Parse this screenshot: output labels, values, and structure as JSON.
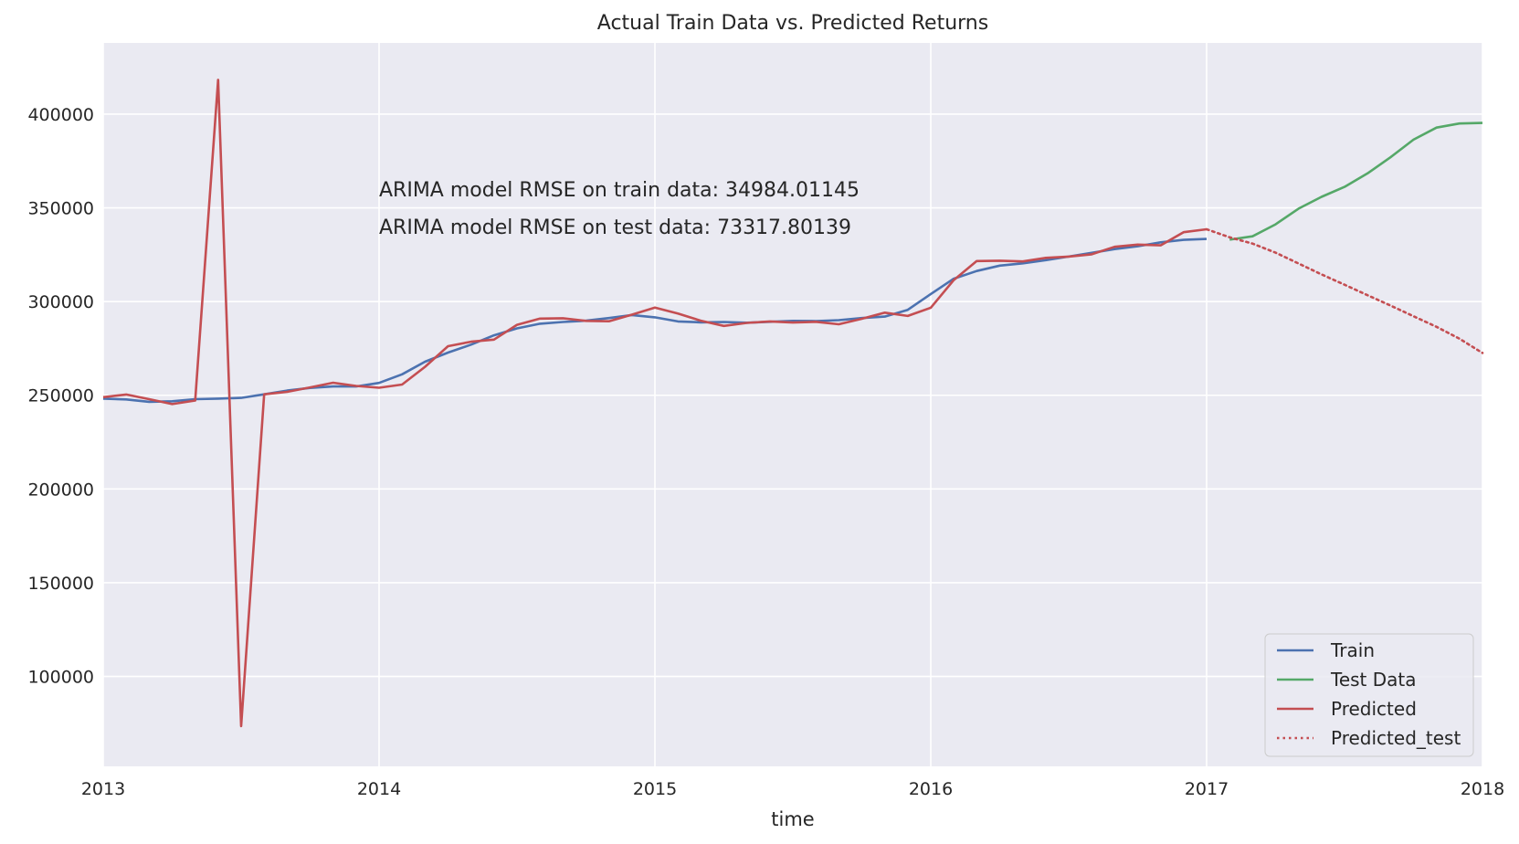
{
  "chart_data": {
    "type": "line",
    "title": "Actual Train Data vs. Predicted Returns",
    "xlabel": "time",
    "ylabel": "",
    "xlim": [
      2013.0,
      2018.0
    ],
    "ylim": [
      52000,
      438000
    ],
    "grid": true,
    "legend_position": "lower-right",
    "x_ticks": [
      {
        "value": 2013,
        "label": "2013"
      },
      {
        "value": 2014,
        "label": "2014"
      },
      {
        "value": 2015,
        "label": "2015"
      },
      {
        "value": 2016,
        "label": "2016"
      },
      {
        "value": 2017,
        "label": "2017"
      },
      {
        "value": 2018,
        "label": "2018"
      }
    ],
    "y_ticks": [
      {
        "value": 100000,
        "label": "100000"
      },
      {
        "value": 150000,
        "label": "150000"
      },
      {
        "value": 200000,
        "label": "200000"
      },
      {
        "value": 250000,
        "label": "250000"
      },
      {
        "value": 300000,
        "label": "300000"
      },
      {
        "value": 350000,
        "label": "350000"
      },
      {
        "value": 400000,
        "label": "400000"
      }
    ],
    "annotations": [
      {
        "text": "ARIMA model RMSE on train data: 34984.01145",
        "x": 2014.0,
        "y": 360000
      },
      {
        "text": "ARIMA model RMSE on test data: 73317.80139",
        "x": 2014.0,
        "y": 340000
      }
    ],
    "series": [
      {
        "name": "Train",
        "color": "#4c72b0",
        "dash": "solid",
        "x": [
          "2013-01",
          "2013-02",
          "2013-03",
          "2013-04",
          "2013-05",
          "2013-06",
          "2013-07",
          "2013-08",
          "2013-09",
          "2013-10",
          "2013-11",
          "2013-12",
          "2014-01",
          "2014-02",
          "2014-03",
          "2014-04",
          "2014-05",
          "2014-06",
          "2014-07",
          "2014-08",
          "2014-09",
          "2014-10",
          "2014-11",
          "2014-12",
          "2015-01",
          "2015-02",
          "2015-03",
          "2015-04",
          "2015-05",
          "2015-06",
          "2015-07",
          "2015-08",
          "2015-09",
          "2015-10",
          "2015-11",
          "2015-12",
          "2016-01",
          "2016-02",
          "2016-03",
          "2016-04",
          "2016-05",
          "2016-06",
          "2016-07",
          "2016-08",
          "2016-09",
          "2016-10",
          "2016-11",
          "2016-12",
          "2017-01"
        ],
        "values": [
          248200,
          247800,
          246500,
          246800,
          247900,
          248200,
          248600,
          250500,
          252500,
          253900,
          254700,
          254700,
          256600,
          261200,
          267900,
          272800,
          277000,
          282000,
          285700,
          288200,
          289100,
          289800,
          291200,
          292800,
          291600,
          289400,
          288900,
          289100,
          288700,
          289200,
          289700,
          289600,
          290100,
          291200,
          292000,
          295600,
          304000,
          312200,
          316300,
          319200,
          320400,
          322100,
          324000,
          326000,
          328000,
          329500,
          331600,
          332900,
          333400
        ]
      },
      {
        "name": "Test Data",
        "color": "#55a868",
        "dash": "solid",
        "x": [
          "2017-02",
          "2017-03",
          "2017-04",
          "2017-05",
          "2017-06",
          "2017-07",
          "2017-08",
          "2017-09",
          "2017-10",
          "2017-11",
          "2017-12",
          "2018-01"
        ],
        "values": [
          333000,
          334800,
          341200,
          349600,
          355900,
          361200,
          368400,
          377000,
          386400,
          392800,
          395000,
          395300
        ]
      },
      {
        "name": "Predicted",
        "color": "#c44e52",
        "dash": "solid",
        "x": [
          "2013-01",
          "2013-02",
          "2013-03",
          "2013-04",
          "2013-05",
          "2013-06",
          "2013-07",
          "2013-08",
          "2013-09",
          "2013-10",
          "2013-11",
          "2013-12",
          "2014-01",
          "2014-02",
          "2014-03",
          "2014-04",
          "2014-05",
          "2014-06",
          "2014-07",
          "2014-08",
          "2014-09",
          "2014-10",
          "2014-11",
          "2014-12",
          "2015-01",
          "2015-02",
          "2015-03",
          "2015-04",
          "2015-05",
          "2015-06",
          "2015-07",
          "2015-08",
          "2015-09",
          "2015-10",
          "2015-11",
          "2015-12",
          "2016-01",
          "2016-02",
          "2016-03",
          "2016-04",
          "2016-05",
          "2016-06",
          "2016-07",
          "2016-08",
          "2016-09",
          "2016-10",
          "2016-11",
          "2016-12",
          "2017-01"
        ],
        "values": [
          249000,
          250400,
          247900,
          245300,
          247200,
          418300,
          73500,
          250500,
          251800,
          254200,
          256700,
          255000,
          254000,
          255700,
          265200,
          276200,
          278600,
          279700,
          287600,
          290900,
          291100,
          289700,
          289500,
          293000,
          296800,
          293600,
          289800,
          287000,
          288600,
          289400,
          288800,
          289200,
          287900,
          290800,
          294100,
          292300,
          296700,
          311500,
          321600,
          321800,
          321400,
          323300,
          324000,
          325200,
          329200,
          330400,
          330000,
          337000,
          338600
        ]
      },
      {
        "name": "Predicted_test",
        "color": "#c44e52",
        "dash": "dotted",
        "x": [
          "2017-01",
          "2017-02",
          "2017-03",
          "2017-04",
          "2017-05",
          "2017-06",
          "2017-07",
          "2017-08",
          "2017-09",
          "2017-10",
          "2017-11",
          "2017-12",
          "2018-01"
        ],
        "values": [
          338600,
          334300,
          330900,
          326100,
          320300,
          314500,
          309000,
          303400,
          297900,
          292200,
          286500,
          280200,
          272600
        ]
      }
    ]
  }
}
